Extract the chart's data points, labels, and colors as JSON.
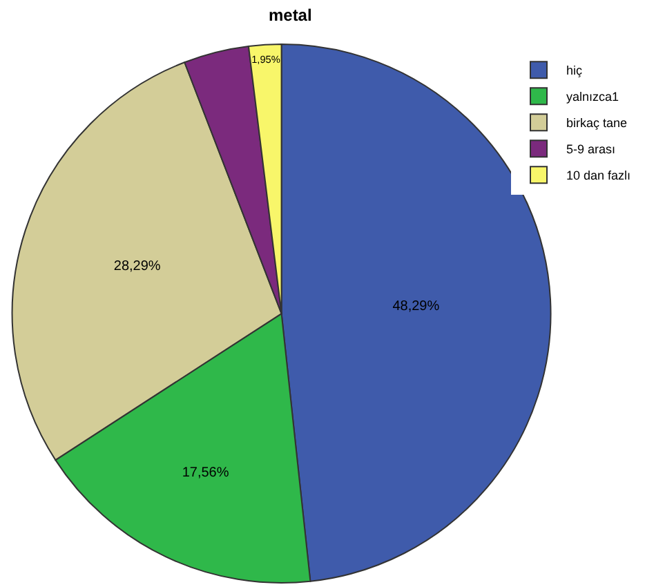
{
  "chart_data": {
    "type": "pie",
    "title": "metal",
    "categories": [
      "hiç",
      "yalnızca1",
      "birkaç tane",
      "5-9 arası",
      "10 dan fazlı"
    ],
    "values": [
      48.29,
      17.56,
      28.29,
      3.91,
      1.95
    ],
    "value_labels": [
      "48,29%",
      "17,56%",
      "28,29%",
      null,
      "1,95%"
    ],
    "colors": [
      "#3f5bab",
      "#2fb84a",
      "#d3cd98",
      "#7b2a7d",
      "#f8f66a"
    ],
    "legend": "top right"
  }
}
